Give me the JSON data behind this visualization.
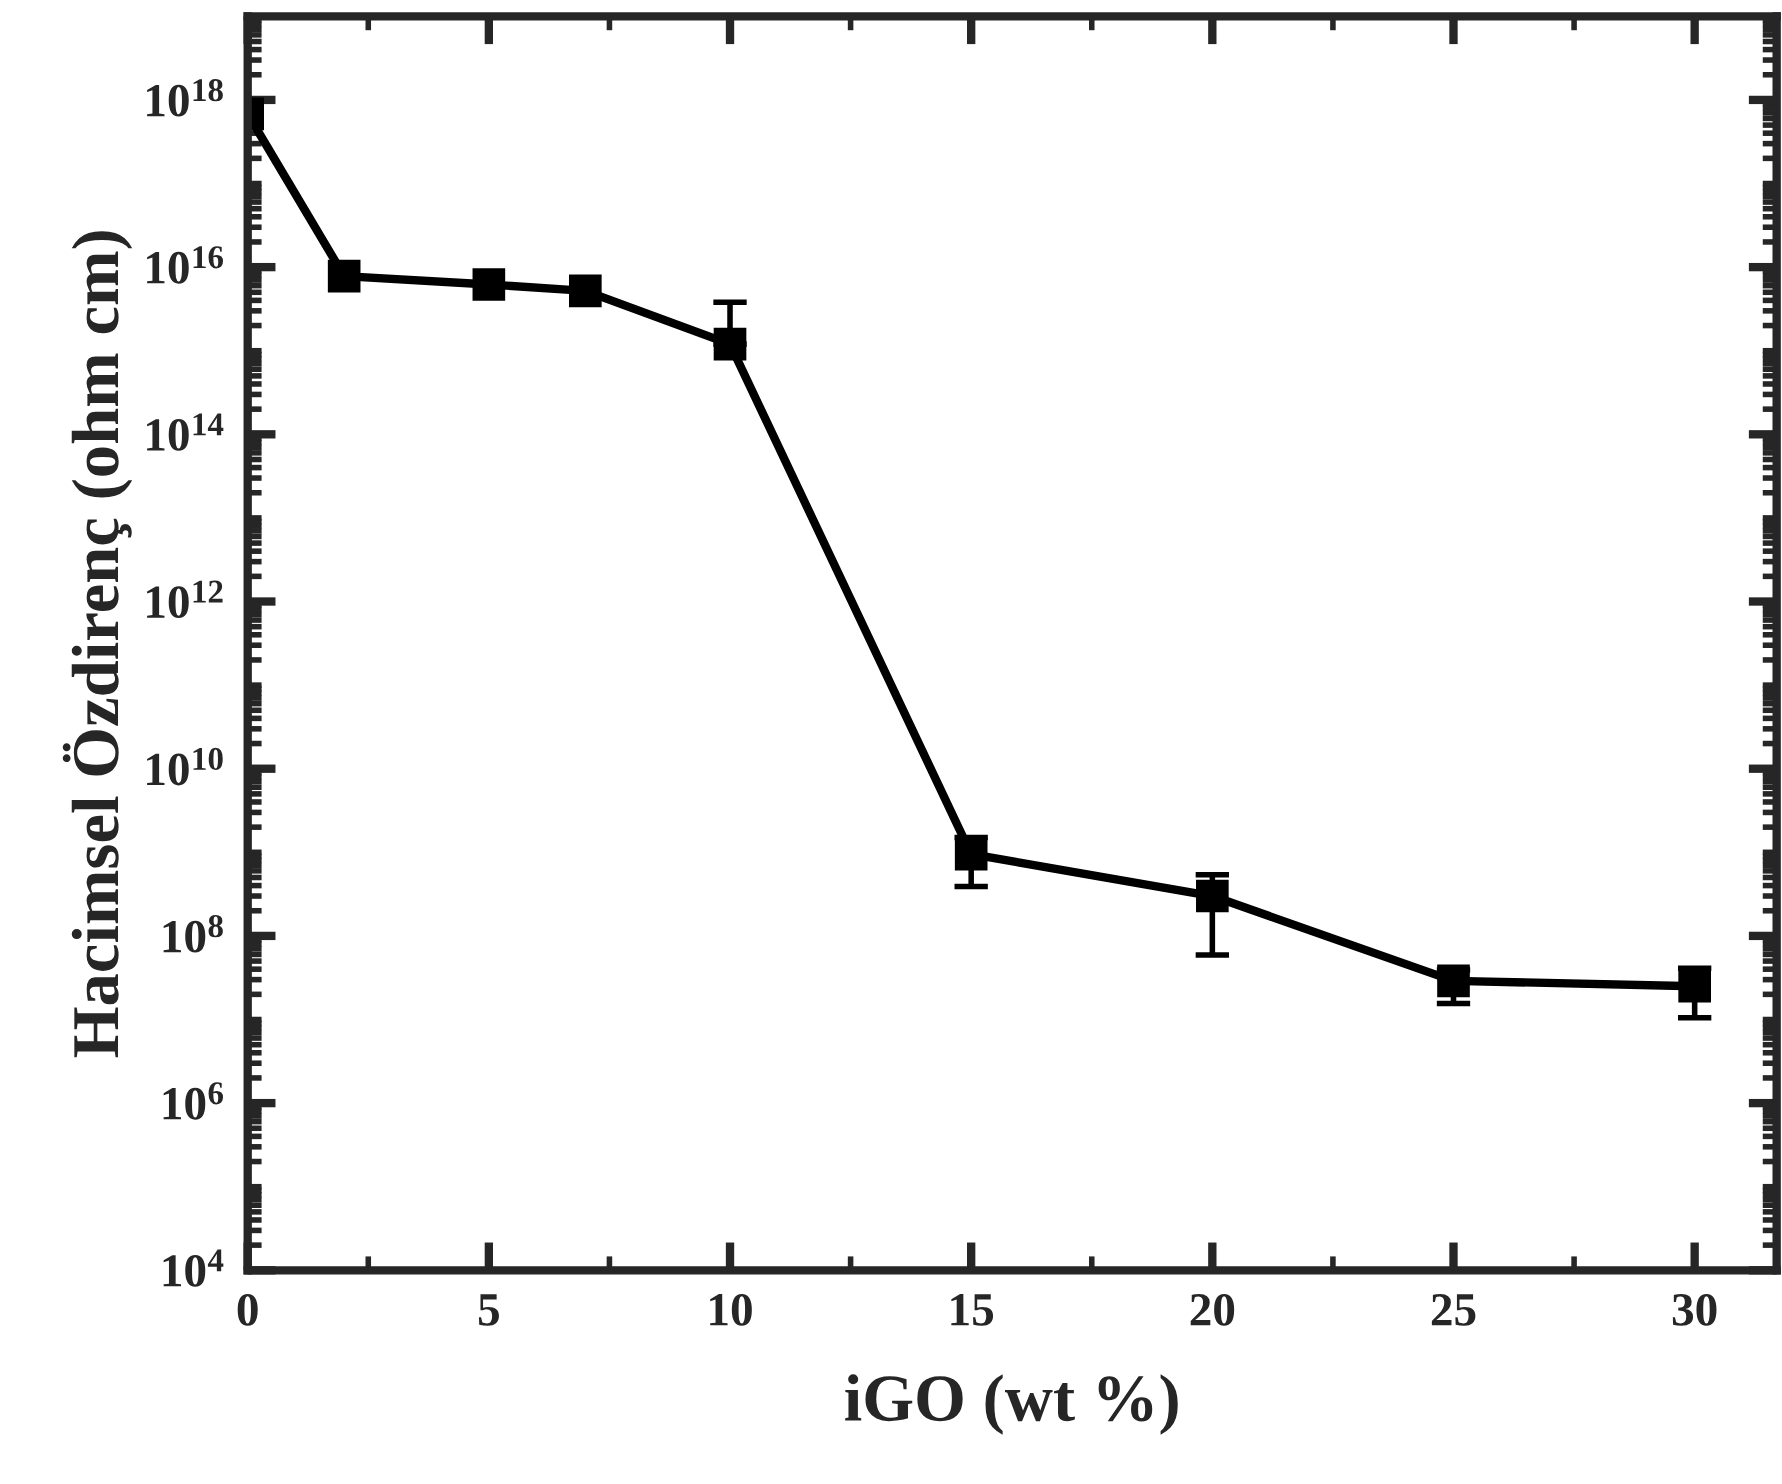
{
  "chart_data": {
    "type": "line",
    "xlabel": "iGO (wt %)",
    "ylabel": "Hacimsel Özdirenç (ohm cm)",
    "x": [
      0,
      2,
      5,
      7,
      10,
      15,
      20,
      25,
      30
    ],
    "series": [
      {
        "color": "#000000",
        "values": [
          6.8e+17,
          7800000000000000.0,
          6200000000000000.0,
          5200000000000000.0,
          1200000000000000.0,
          950000000.0,
          300000000.0,
          29000000.0,
          25000000.0
        ],
        "errors": [
          null,
          null,
          null,
          null,
          [
            1200000000000000.0,
            3800000000000000.0
          ],
          [
            390000000.0,
            1500000000.0
          ],
          [
            59000000.0,
            540000000.0
          ],
          [
            15500000.0,
            39000000.0
          ],
          [
            10500000.0,
            41000000.0
          ]
        ]
      }
    ],
    "log": "y",
    "xlim": [
      0,
      31.7
    ],
    "xticks": [
      0,
      5,
      10,
      15,
      20,
      25,
      30
    ],
    "ylim": [
      10000.0,
      1e+19
    ],
    "yticks": [
      {
        "value": 10000.0,
        "label": "10$^{4}$"
      },
      {
        "value": 1000000.0,
        "label": "10$^{6}$"
      },
      {
        "value": 100000000.0,
        "label": "10$^{8}$"
      },
      {
        "value": 10000000000.0,
        "label": "10$^{10}$"
      },
      {
        "value": 1000000000000.0,
        "label": "10$^{12}$"
      },
      {
        "value": 100000000000000.0,
        "label": "10$^{14}$"
      },
      {
        "value": 1e+16,
        "label": "10$^{16}$"
      },
      {
        "value": 1e+18,
        "label": "10$^{18}$"
      }
    ],
    "marker": "square",
    "line_style": "solid",
    "grid": false,
    "legend": false
  }
}
